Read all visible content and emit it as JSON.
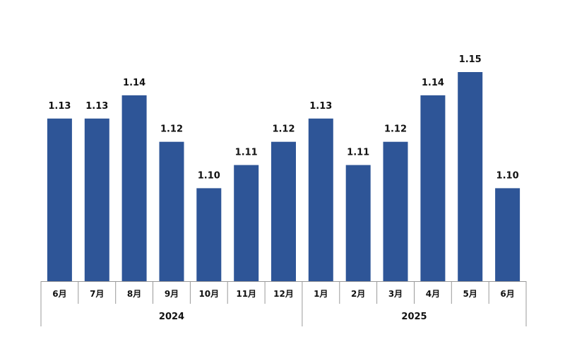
{
  "chart_data": {
    "type": "bar",
    "categories": [
      "6月",
      "7月",
      "8月",
      "9月",
      "10月",
      "11月",
      "12月",
      "1月",
      "2月",
      "3月",
      "4月",
      "5月",
      "6月"
    ],
    "values": [
      1.13,
      1.13,
      1.14,
      1.12,
      1.1,
      1.11,
      1.12,
      1.13,
      1.11,
      1.12,
      1.14,
      1.15,
      1.1
    ],
    "value_labels": [
      "1.13",
      "1.13",
      "1.14",
      "1.12",
      "1.10",
      "1.11",
      "1.12",
      "1.13",
      "1.11",
      "1.12",
      "1.14",
      "1.15",
      "1.10"
    ],
    "groups": [
      {
        "label": "2024",
        "count": 7
      },
      {
        "label": "2025",
        "count": 6
      }
    ],
    "ylim": [
      1.06,
      1.15
    ],
    "grid": false,
    "legend": "none",
    "bar_color": "#2E5597",
    "axis_color": "#999999"
  }
}
